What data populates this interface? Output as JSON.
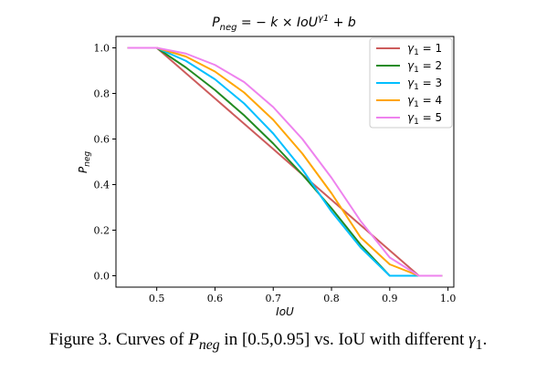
{
  "chart_data": {
    "type": "line",
    "title_parts": {
      "p": "P",
      "p_sub": "neg",
      "eq": " = − k × IoU",
      "sup": "γ1",
      "tail": " + b"
    },
    "xlabel": "IoU",
    "ylabel_parts": {
      "p": "P",
      "p_sub": "neg"
    },
    "xlim": [
      0.43,
      1.01
    ],
    "ylim": [
      -0.05,
      1.05
    ],
    "xticks": [
      0.5,
      0.6,
      0.7,
      0.8,
      0.9,
      1.0
    ],
    "xtick_labels": [
      "0.5",
      "0.6",
      "0.7",
      "0.8",
      "0.9",
      "1.0"
    ],
    "yticks": [
      0.0,
      0.2,
      0.4,
      0.6,
      0.8,
      1.0
    ],
    "ytick_labels": [
      "0.0",
      "0.2",
      "0.4",
      "0.6",
      "0.8",
      "1.0"
    ],
    "grid": false,
    "legend_position": "top-right",
    "series": [
      {
        "name": "γ1 = 1",
        "legend_sym": "γ",
        "legend_sub": "1",
        "legend_val": " = 1",
        "color": "#cd5c5c",
        "x": [
          0.45,
          0.5,
          0.55,
          0.6,
          0.65,
          0.7,
          0.75,
          0.8,
          0.85,
          0.9,
          0.95,
          0.99
        ],
        "y": [
          1.0,
          1.0,
          0.889,
          0.778,
          0.667,
          0.556,
          0.444,
          0.333,
          0.222,
          0.111,
          0.0,
          0.0
        ]
      },
      {
        "name": "γ1 = 2",
        "legend_sym": "γ",
        "legend_sub": "1",
        "legend_val": " = 2",
        "color": "#228b22",
        "x": [
          0.45,
          0.5,
          0.55,
          0.6,
          0.65,
          0.7,
          0.75,
          0.8,
          0.85,
          0.9,
          0.95,
          0.99
        ],
        "y": [
          1.0,
          1.0,
          0.914,
          0.815,
          0.704,
          0.58,
          0.444,
          0.296,
          0.136,
          0.0,
          0.0,
          0.0
        ]
      },
      {
        "name": "γ1 = 3",
        "legend_sym": "γ",
        "legend_sub": "1",
        "legend_val": " = 3",
        "color": "#00bfff",
        "x": [
          0.45,
          0.5,
          0.55,
          0.6,
          0.65,
          0.7,
          0.75,
          0.8,
          0.85,
          0.9,
          0.95,
          0.99
        ],
        "y": [
          1.0,
          1.0,
          0.943,
          0.862,
          0.756,
          0.624,
          0.466,
          0.282,
          0.124,
          0.0,
          0.0,
          0.0
        ]
      },
      {
        "name": "γ1 = 4",
        "legend_sym": "γ",
        "legend_sub": "1",
        "legend_val": " = 4",
        "color": "#ffa500",
        "x": [
          0.45,
          0.5,
          0.55,
          0.6,
          0.65,
          0.7,
          0.75,
          0.8,
          0.85,
          0.9,
          0.95,
          0.99
        ],
        "y": [
          1.0,
          1.0,
          0.962,
          0.896,
          0.804,
          0.684,
          0.536,
          0.362,
          0.168,
          0.05,
          0.0,
          0.0
        ]
      },
      {
        "name": "γ1 = 5",
        "legend_sym": "γ",
        "legend_sub": "1",
        "legend_val": " = 5",
        "color": "#ee82ee",
        "x": [
          0.45,
          0.5,
          0.55,
          0.6,
          0.65,
          0.7,
          0.75,
          0.8,
          0.85,
          0.9,
          0.95,
          0.99
        ],
        "y": [
          1.0,
          1.0,
          0.975,
          0.925,
          0.85,
          0.74,
          0.6,
          0.43,
          0.24,
          0.08,
          0.0,
          0.0
        ]
      }
    ]
  },
  "caption": {
    "prefix": "Figure 3. Curves of ",
    "p": "P",
    "p_sub": "neg",
    "middle": " in [0.5,0.95] vs. IoU with different ",
    "gamma": "γ",
    "gamma_sub": "1",
    "suffix": "."
  }
}
